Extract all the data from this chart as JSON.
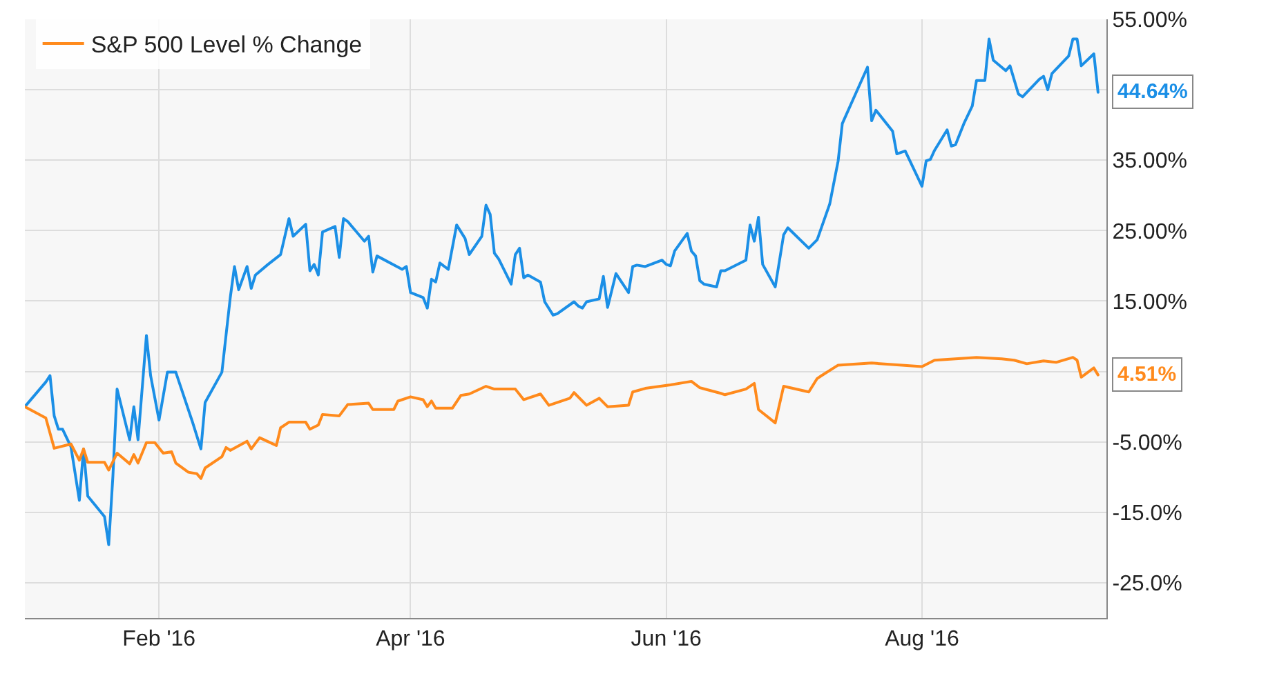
{
  "chart_data": {
    "type": "line",
    "xlim": [
      "2015-12-31",
      "2016-09-14"
    ],
    "xticks": [
      {
        "value": "2016-02-01",
        "label": "Feb '16"
      },
      {
        "value": "2016-04-01",
        "label": "Apr '16"
      },
      {
        "value": "2016-06-01",
        "label": "Jun '16"
      },
      {
        "value": "2016-08-01",
        "label": "Aug '16"
      }
    ],
    "ylim": [
      -30,
      55
    ],
    "yticks": [
      {
        "value": 55,
        "label": "55.00%"
      },
      {
        "value": 45,
        "label": null
      },
      {
        "value": 35,
        "label": "35.00%"
      },
      {
        "value": 25,
        "label": "25.00%"
      },
      {
        "value": 15,
        "label": "15.00%"
      },
      {
        "value": 5,
        "label": null
      },
      {
        "value": -5,
        "label": "-5.00%"
      },
      {
        "value": -15,
        "label": "-15.0%"
      },
      {
        "value": -25,
        "label": "-25.0%"
      }
    ],
    "grid": true,
    "legend": "top left",
    "marker": "none",
    "line_style": "solid",
    "series": [
      {
        "color": "#1b8fe6",
        "x": [
          "2015-12-31",
          "2016-01-05",
          "2016-01-06",
          "2016-01-07",
          "2016-01-08",
          "2016-01-09",
          "2016-01-11",
          "2016-01-13",
          "2016-01-14",
          "2016-01-15",
          "2016-01-19",
          "2016-01-20",
          "2016-01-21",
          "2016-01-22",
          "2016-01-25",
          "2016-01-26",
          "2016-01-27",
          "2016-01-29",
          "2016-01-30",
          "2016-02-01",
          "2016-02-03",
          "2016-02-05",
          "2016-02-09",
          "2016-02-11",
          "2016-02-12",
          "2016-02-16",
          "2016-02-17",
          "2016-02-18",
          "2016-02-19",
          "2016-02-20",
          "2016-02-22",
          "2016-02-23",
          "2016-02-24",
          "2016-02-27",
          "2016-03-01",
          "2016-03-03",
          "2016-03-04",
          "2016-03-07",
          "2016-03-08",
          "2016-03-09",
          "2016-03-10",
          "2016-03-11",
          "2016-03-14",
          "2016-03-15",
          "2016-03-16",
          "2016-03-17",
          "2016-03-21",
          "2016-03-22",
          "2016-03-23",
          "2016-03-24",
          "2016-03-30",
          "2016-03-31",
          "2016-04-01",
          "2016-04-04",
          "2016-04-05",
          "2016-04-06",
          "2016-04-07",
          "2016-04-08",
          "2016-04-10",
          "2016-04-12",
          "2016-04-14",
          "2016-04-15",
          "2016-04-18",
          "2016-04-19",
          "2016-04-20",
          "2016-04-21",
          "2016-04-22",
          "2016-04-25",
          "2016-04-26",
          "2016-04-27",
          "2016-04-28",
          "2016-04-29",
          "2016-05-02",
          "2016-05-03",
          "2016-05-05",
          "2016-05-06",
          "2016-05-10",
          "2016-05-11",
          "2016-05-12",
          "2016-05-13",
          "2016-05-16",
          "2016-05-17",
          "2016-05-18",
          "2016-05-20",
          "2016-05-23",
          "2016-05-24",
          "2016-05-25",
          "2016-05-27",
          "2016-05-31",
          "2016-06-01",
          "2016-06-02",
          "2016-06-03",
          "2016-06-06",
          "2016-06-07",
          "2016-06-08",
          "2016-06-09",
          "2016-06-10",
          "2016-06-13",
          "2016-06-14",
          "2016-06-15",
          "2016-06-20",
          "2016-06-21",
          "2016-06-22",
          "2016-06-23",
          "2016-06-24",
          "2016-06-27",
          "2016-06-29",
          "2016-06-30",
          "2016-07-05",
          "2016-07-07",
          "2016-07-10",
          "2016-07-12",
          "2016-07-13",
          "2016-07-16",
          "2016-07-19",
          "2016-07-20",
          "2016-07-21",
          "2016-07-25",
          "2016-07-26",
          "2016-07-28",
          "2016-08-01",
          "2016-08-02",
          "2016-08-03",
          "2016-08-04",
          "2016-08-07",
          "2016-08-08",
          "2016-08-09",
          "2016-08-11",
          "2016-08-13",
          "2016-08-14",
          "2016-08-16",
          "2016-08-17",
          "2016-08-18",
          "2016-08-21",
          "2016-08-22",
          "2016-08-24",
          "2016-08-25",
          "2016-08-29",
          "2016-08-30",
          "2016-08-31",
          "2016-09-01",
          "2016-09-05",
          "2016-09-06",
          "2016-09-07",
          "2016-09-08",
          "2016-09-11",
          "2016-09-12"
        ],
        "values": [
          0,
          3.5,
          4.4,
          -1.3,
          -3.2,
          -3.2,
          -5.7,
          -13.3,
          -6,
          -12.7,
          -15.6,
          -19.6,
          -9.9,
          2.5,
          -4.7,
          0,
          -4.7,
          10.1,
          4.4,
          -1.9,
          4.9,
          4.9,
          -2.2,
          -6,
          0.6,
          4.9,
          10.2,
          15.5,
          19.9,
          16.6,
          19.9,
          16.8,
          18.7,
          20.2,
          21.6,
          26.7,
          24.2,
          25.9,
          19.3,
          20.2,
          18.7,
          24.8,
          25.6,
          21.2,
          26.7,
          26.3,
          23.5,
          24.2,
          19.1,
          21.4,
          19.5,
          19.9,
          16.2,
          15.5,
          14,
          18.1,
          17.7,
          20.4,
          19.5,
          25.8,
          23.9,
          21.6,
          24.2,
          28.6,
          27.3,
          21.8,
          21,
          17.4,
          21.6,
          22.5,
          18.3,
          18.7,
          17.7,
          14.9,
          13,
          13.2,
          14.9,
          14.3,
          14,
          14.9,
          15.3,
          18.5,
          14.1,
          18.9,
          16.2,
          19.9,
          20.1,
          19.9,
          20.8,
          20.2,
          20,
          22.1,
          24.6,
          22.1,
          21.4,
          17.9,
          17.4,
          17,
          19.3,
          19.3,
          20.8,
          25.8,
          23.5,
          26.9,
          20.2,
          17,
          24.4,
          25.4,
          22.5,
          23.7,
          28.8,
          34.9,
          40.2,
          44.2,
          48.2,
          40.6,
          42.1,
          39.1,
          35.9,
          36.3,
          31.3,
          34.9,
          35.1,
          36.4,
          39.3,
          37,
          37.2,
          40.2,
          42.7,
          46.3,
          46.3,
          52.2,
          49.2,
          47.7,
          48.4,
          44.4,
          44,
          46.5,
          46.9,
          45,
          47.3,
          49.8,
          52.2,
          52.2,
          48.4,
          50.1,
          44.64
        ],
        "value_labels": [
          null,
          null,
          null,
          null,
          null,
          null,
          null,
          null,
          null,
          null,
          null,
          null,
          null,
          null,
          null,
          null,
          null,
          null,
          null,
          null,
          null,
          null,
          null,
          null,
          null,
          null,
          null,
          null,
          null,
          null,
          null,
          null,
          null,
          null,
          null,
          null,
          null,
          null,
          null,
          null,
          null,
          null,
          null,
          null,
          null,
          null,
          null,
          null,
          null,
          null,
          null,
          null,
          null,
          null,
          null,
          null,
          null,
          null,
          null,
          null,
          null,
          null,
          null,
          null,
          null,
          null,
          null,
          null,
          null,
          null,
          null,
          null,
          null,
          null,
          null,
          null,
          null,
          null,
          null,
          null,
          null,
          null,
          null,
          null,
          null,
          null,
          null,
          null,
          null,
          null,
          null,
          null,
          null,
          null,
          null,
          null,
          null,
          null,
          null,
          null,
          null,
          null,
          null,
          null,
          null,
          null,
          null,
          null,
          null,
          null,
          null,
          null,
          null,
          null,
          null,
          null,
          null,
          null,
          null,
          null,
          null,
          null,
          null,
          null,
          null,
          null,
          null,
          null,
          null,
          null,
          null,
          null,
          null,
          null,
          null,
          null,
          null,
          null,
          null,
          null,
          null,
          null,
          null,
          null,
          null,
          null,
          "44.64%"
        ]
      },
      {
        "name": "S&P 500 Level % Change",
        "color": "#ff8a1c",
        "x": [
          "2015-12-31",
          "2016-01-05",
          "2016-01-07",
          "2016-01-11",
          "2016-01-13",
          "2016-01-14",
          "2016-01-15",
          "2016-01-19",
          "2016-01-20",
          "2016-01-22",
          "2016-01-25",
          "2016-01-26",
          "2016-01-27",
          "2016-01-29",
          "2016-01-31",
          "2016-02-02",
          "2016-02-04",
          "2016-02-05",
          "2016-02-08",
          "2016-02-10",
          "2016-02-11",
          "2016-02-12",
          "2016-02-16",
          "2016-02-17",
          "2016-02-18",
          "2016-02-22",
          "2016-02-23",
          "2016-02-25",
          "2016-02-29",
          "2016-03-01",
          "2016-03-03",
          "2016-03-07",
          "2016-03-08",
          "2016-03-10",
          "2016-03-11",
          "2016-03-15",
          "2016-03-17",
          "2016-03-22",
          "2016-03-23",
          "2016-03-28",
          "2016-03-29",
          "2016-04-01",
          "2016-04-04",
          "2016-04-05",
          "2016-04-06",
          "2016-04-07",
          "2016-04-11",
          "2016-04-13",
          "2016-04-15",
          "2016-04-19",
          "2016-04-21",
          "2016-04-26",
          "2016-04-28",
          "2016-05-02",
          "2016-05-04",
          "2016-05-09",
          "2016-05-10",
          "2016-05-13",
          "2016-05-16",
          "2016-05-18",
          "2016-05-23",
          "2016-05-24",
          "2016-05-27",
          "2016-06-02",
          "2016-06-07",
          "2016-06-09",
          "2016-06-14",
          "2016-06-15",
          "2016-06-20",
          "2016-06-22",
          "2016-06-23",
          "2016-06-27",
          "2016-06-29",
          "2016-07-05",
          "2016-07-07",
          "2016-07-08",
          "2016-07-12",
          "2016-07-20",
          "2016-08-01",
          "2016-08-04",
          "2016-08-14",
          "2016-08-20",
          "2016-08-23",
          "2016-08-26",
          "2016-08-30",
          "2016-09-02",
          "2016-09-06",
          "2016-09-07",
          "2016-09-08",
          "2016-09-11",
          "2016-09-12"
        ],
        "values": [
          0,
          -1.6,
          -5.9,
          -5.3,
          -7.6,
          -6,
          -7.9,
          -7.9,
          -9,
          -6.6,
          -8.1,
          -6.8,
          -8,
          -5.1,
          -5.1,
          -6.6,
          -6.4,
          -8,
          -9.3,
          -9.5,
          -10.2,
          -8.7,
          -7.1,
          -5.8,
          -6.2,
          -4.9,
          -6,
          -4.4,
          -5.5,
          -3,
          -2.2,
          -2.2,
          -3.2,
          -2.6,
          -1.1,
          -1.3,
          0.3,
          0.5,
          -0.4,
          -0.4,
          0.8,
          1.4,
          1,
          0,
          0.8,
          -0.2,
          -0.2,
          1.6,
          1.8,
          2.9,
          2.5,
          2.5,
          1,
          1.8,
          0.2,
          1.2,
          2,
          0.2,
          1.2,
          0,
          0.2,
          2.1,
          2.6,
          3.1,
          3.6,
          2.7,
          1.9,
          1.7,
          2.5,
          3.3,
          -0.4,
          -2.3,
          2.9,
          2.1,
          4,
          4.4,
          5.9,
          6.2,
          5.7,
          6.6,
          7,
          6.8,
          6.6,
          6.1,
          6.5,
          6.3,
          7,
          6.6,
          4.2,
          5.5,
          4.51
        ],
        "value_labels": [
          null,
          null,
          null,
          null,
          null,
          null,
          null,
          null,
          null,
          null,
          null,
          null,
          null,
          null,
          null,
          null,
          null,
          null,
          null,
          null,
          null,
          null,
          null,
          null,
          null,
          null,
          null,
          null,
          null,
          null,
          null,
          null,
          null,
          null,
          null,
          null,
          null,
          null,
          null,
          null,
          null,
          null,
          null,
          null,
          null,
          null,
          null,
          null,
          null,
          null,
          null,
          null,
          null,
          null,
          null,
          null,
          null,
          null,
          null,
          null,
          null,
          null,
          null,
          null,
          null,
          null,
          null,
          null,
          null,
          null,
          null,
          null,
          null,
          null,
          null,
          null,
          null,
          null,
          null,
          null,
          null,
          null,
          null,
          null,
          null,
          null,
          null,
          null,
          null,
          null,
          "4.51%"
        ]
      }
    ]
  }
}
